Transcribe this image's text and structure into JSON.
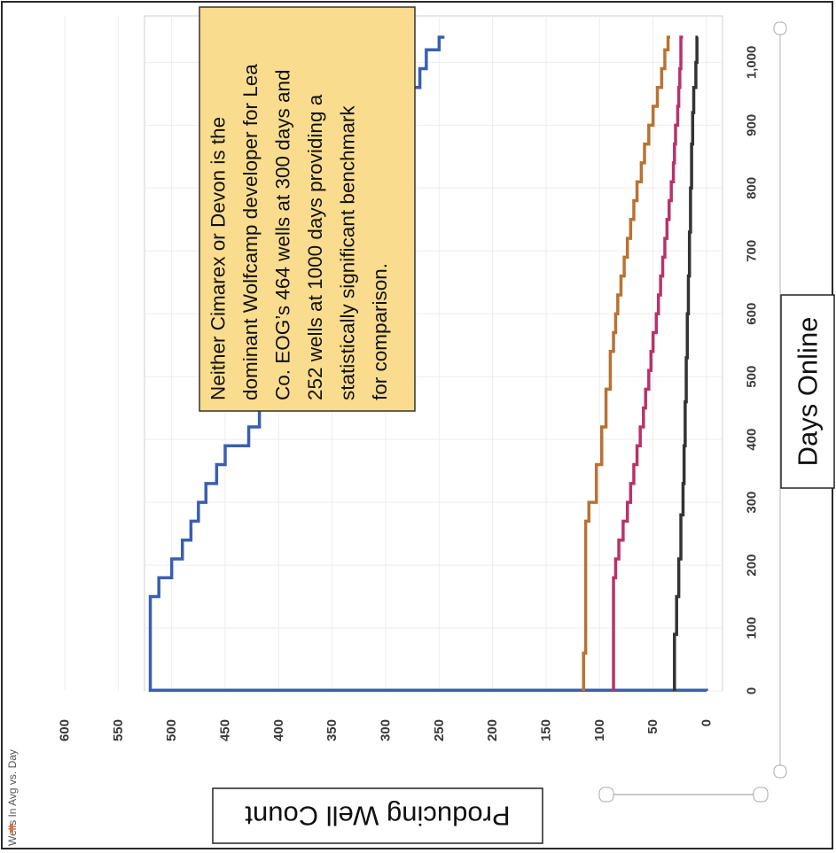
{
  "chart_data": {
    "type": "line",
    "orientation": "rotated-90-clockwise",
    "title": "Wells In Avg vs. Day",
    "xlabel": "Days Online",
    "ylabel": "Producing Well Count",
    "xlim": [
      0,
      1040
    ],
    "ylim": [
      0,
      600
    ],
    "x_ticks": [
      0,
      100,
      200,
      300,
      400,
      500,
      600,
      700,
      800,
      900,
      1000
    ],
    "x_tick_labels": [
      "0",
      "100",
      "200",
      "300",
      "400",
      "500",
      "600",
      "700",
      "800",
      "900",
      "1,000"
    ],
    "y_ticks": [
      0,
      50,
      100,
      150,
      200,
      250,
      300,
      350,
      400,
      450,
      500,
      550,
      600
    ],
    "y_tick_labels": [
      "0",
      "50",
      "100",
      "150",
      "200",
      "250",
      "300",
      "350",
      "400",
      "450",
      "500",
      "550",
      "600"
    ],
    "grid": true,
    "annotation": "Neither Cimarex or Devon is the dominant Wolfcamp developer for Lea Co. EOG’s 464 wells at 300 days and 252 wells at 1000 days providing a statistically significant benchmark for comparison.",
    "series": [
      {
        "color": "#3a5fb0",
        "x": [
          0,
          1,
          120,
          150,
          180,
          210,
          240,
          270,
          300,
          330,
          360,
          390,
          420,
          450,
          480,
          510,
          540,
          570,
          600,
          630,
          660,
          690,
          720,
          750,
          780,
          810,
          840,
          870,
          900,
          930,
          960,
          990,
          1020,
          1040
        ],
        "y": [
          0,
          520,
          520,
          512,
          500,
          490,
          482,
          475,
          468,
          458,
          450,
          428,
          418,
          410,
          400,
          390,
          380,
          368,
          357,
          357,
          357,
          357,
          348,
          332,
          318,
          308,
          300,
          292,
          284,
          276,
          268,
          262,
          250,
          245
        ]
      },
      {
        "color": "#b87333",
        "x": [
          0,
          60,
          270,
          300,
          360,
          420,
          480,
          540,
          570,
          600,
          630,
          660,
          690,
          720,
          750,
          780,
          810,
          840,
          870,
          900,
          930,
          960,
          990,
          1020,
          1040
        ],
        "y": [
          115,
          113,
          110,
          103,
          98,
          94,
          90,
          87,
          85,
          83,
          80,
          77,
          74,
          71,
          68,
          65,
          61,
          58,
          54,
          50,
          46,
          42,
          39,
          36,
          34
        ]
      },
      {
        "color": "#b8336a",
        "x": [
          0,
          150,
          180,
          210,
          240,
          270,
          300,
          330,
          360,
          390,
          420,
          450,
          480,
          510,
          540,
          570,
          600,
          630,
          660,
          690,
          720,
          750,
          780,
          810,
          840,
          870,
          900,
          930,
          960,
          990,
          1040
        ],
        "y": [
          87,
          87,
          85,
          82,
          78,
          74,
          71,
          68,
          65,
          62,
          59,
          57,
          54,
          52,
          50,
          47,
          45,
          43,
          41,
          39,
          37,
          35,
          33,
          31,
          30,
          29,
          27,
          26,
          25,
          24,
          22
        ]
      },
      {
        "color": "#333333",
        "x": [
          0,
          90,
          150,
          210,
          280,
          330,
          390,
          460,
          530,
          600,
          660,
          730,
          800,
          870,
          920,
          960,
          1000,
          1040
        ],
        "y": [
          30,
          28,
          26,
          24,
          22,
          21,
          20,
          19,
          18,
          17,
          16,
          15,
          14,
          13,
          12,
          10,
          9,
          8
        ]
      }
    ]
  }
}
